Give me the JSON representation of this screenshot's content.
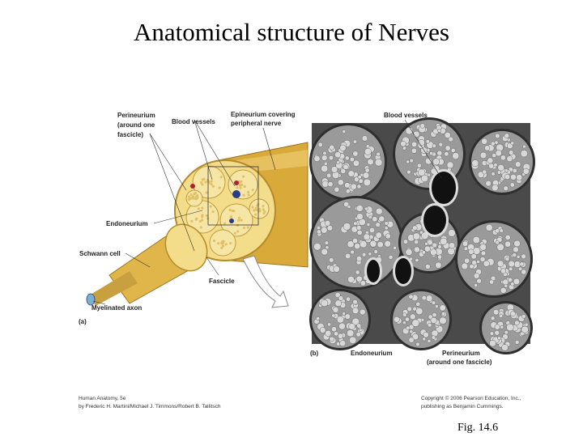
{
  "title": "Anatomical structure of Nerves",
  "panel_a": {
    "labels": [
      {
        "lines": [
          "Perineurium",
          "(around one",
          "fascicle)"
        ]
      },
      {
        "lines": [
          "Blood vessels"
        ]
      },
      {
        "lines": [
          "Epineurium covering",
          "peripheral nerve"
        ]
      },
      {
        "lines": [
          "Endoneurium"
        ]
      },
      {
        "lines": [
          "Schwann cell"
        ]
      },
      {
        "lines": [
          "Fascicle"
        ]
      },
      {
        "lines": [
          "Myelinated axon"
        ]
      }
    ],
    "letter": "(a)"
  },
  "panel_b": {
    "labels": [
      {
        "lines": [
          "Blood vessels"
        ]
      },
      {
        "lines": [
          "Endoneurium"
        ]
      },
      {
        "lines": [
          "Perineurium",
          "(around one fascicle)"
        ]
      }
    ],
    "letter": "(b)"
  },
  "credits": {
    "left": [
      "Human Anatomy, 5e",
      "by Frederic H. Martini/Michael J. Timmons/Robert B. Tallitsch"
    ],
    "right": [
      "Copyright © 2006 Pearson Education, Inc.,",
      "publishing as Benjamin Cummings."
    ]
  },
  "figure_number": "Fig. 14.6"
}
